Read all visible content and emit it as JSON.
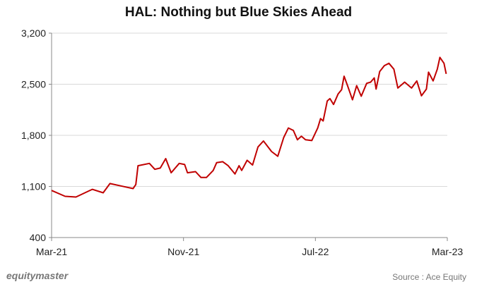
{
  "chart_data": {
    "type": "line",
    "title": "HAL: Nothing but Blue Skies Ahead",
    "xlabel": "",
    "ylabel": "",
    "ylim": [
      400,
      3200
    ],
    "yticks": [
      400,
      1100,
      1800,
      2500,
      3200
    ],
    "ytick_labels": [
      "400",
      "1,100",
      "1,800",
      "2,500",
      "3,200"
    ],
    "xlim_months": [
      0,
      24
    ],
    "xticks": [
      {
        "m": 0,
        "label": "Mar-21"
      },
      {
        "m": 8,
        "label": "Nov-21"
      },
      {
        "m": 16,
        "label": "Jul-22"
      },
      {
        "m": 24,
        "label": "Mar-23"
      }
    ],
    "grid": true,
    "series": [
      {
        "name": "HAL",
        "color": "#c00000",
        "x": [
          0,
          0.82,
          1.48,
          2.47,
          3.13,
          3.54,
          4.28,
          4.94,
          5.11,
          5.24,
          5.93,
          6.26,
          6.59,
          6.92,
          7.25,
          7.74,
          8.07,
          8.24,
          8.73,
          9.06,
          9.39,
          9.8,
          10.01,
          10.38,
          10.71,
          11.12,
          11.37,
          11.53,
          11.86,
          12.19,
          12.52,
          12.85,
          13.34,
          13.72,
          14.08,
          14.36,
          14.66,
          14.91,
          15.15,
          15.4,
          15.78,
          16.14,
          16.31,
          16.47,
          16.72,
          16.88,
          17.1,
          17.38,
          17.59,
          17.74,
          17.95,
          18.25,
          18.5,
          18.78,
          19.11,
          19.35,
          19.57,
          19.68,
          19.9,
          20.18,
          20.46,
          20.76,
          21.0,
          21.41,
          21.83,
          22.15,
          22.43,
          22.73,
          22.86,
          23.14,
          23.39,
          23.55,
          23.8,
          23.93
        ],
        "values": [
          1045,
          965,
          955,
          1060,
          1013,
          1140,
          1103,
          1071,
          1126,
          1384,
          1416,
          1335,
          1352,
          1481,
          1287,
          1416,
          1400,
          1287,
          1303,
          1223,
          1223,
          1319,
          1426,
          1439,
          1384,
          1271,
          1384,
          1319,
          1458,
          1394,
          1642,
          1723,
          1578,
          1513,
          1771,
          1900,
          1868,
          1739,
          1787,
          1739,
          1729,
          1900,
          2029,
          1997,
          2271,
          2303,
          2223,
          2368,
          2426,
          2610,
          2481,
          2287,
          2481,
          2336,
          2513,
          2529,
          2587,
          2433,
          2674,
          2755,
          2787,
          2706,
          2448,
          2529,
          2448,
          2545,
          2342,
          2433,
          2665,
          2545,
          2706,
          2868,
          2787,
          2642
        ]
      }
    ]
  },
  "footer": {
    "brand": "equitymaster",
    "source": "Source : Ace Equity"
  }
}
